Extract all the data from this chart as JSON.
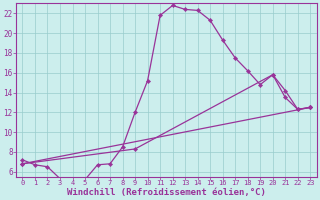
{
  "title": "",
  "xlabel": "Windchill (Refroidissement éolien,°C)",
  "bg_color": "#cceeed",
  "grid_color": "#99cccc",
  "line_color": "#993399",
  "xlim": [
    -0.5,
    23.5
  ],
  "ylim": [
    5.5,
    23.0
  ],
  "yticks": [
    6,
    8,
    10,
    12,
    14,
    16,
    18,
    20,
    22
  ],
  "xticks": [
    0,
    1,
    2,
    3,
    4,
    5,
    6,
    7,
    8,
    9,
    10,
    11,
    12,
    13,
    14,
    15,
    16,
    17,
    18,
    19,
    20,
    21,
    22,
    23
  ],
  "line1_x": [
    0,
    1,
    2,
    3,
    4,
    5,
    6,
    7,
    8,
    9,
    10,
    11,
    12,
    13,
    14,
    15,
    16,
    17,
    18,
    19,
    20,
    21,
    22,
    23
  ],
  "line1_y": [
    7.2,
    6.7,
    6.5,
    5.3,
    5.2,
    5.2,
    6.7,
    6.8,
    8.5,
    12.0,
    15.2,
    21.8,
    22.8,
    22.4,
    22.3,
    21.3,
    19.3,
    17.5,
    16.2,
    14.8,
    15.8,
    13.5,
    12.3,
    12.5
  ],
  "line2_x": [
    0,
    23
  ],
  "line2_y": [
    6.8,
    12.5
  ],
  "line3_x": [
    0,
    9,
    20,
    21,
    22,
    23
  ],
  "line3_y": [
    6.8,
    8.3,
    15.8,
    14.2,
    12.3,
    12.5
  ],
  "markersize": 2.2,
  "linewidth": 0.9
}
